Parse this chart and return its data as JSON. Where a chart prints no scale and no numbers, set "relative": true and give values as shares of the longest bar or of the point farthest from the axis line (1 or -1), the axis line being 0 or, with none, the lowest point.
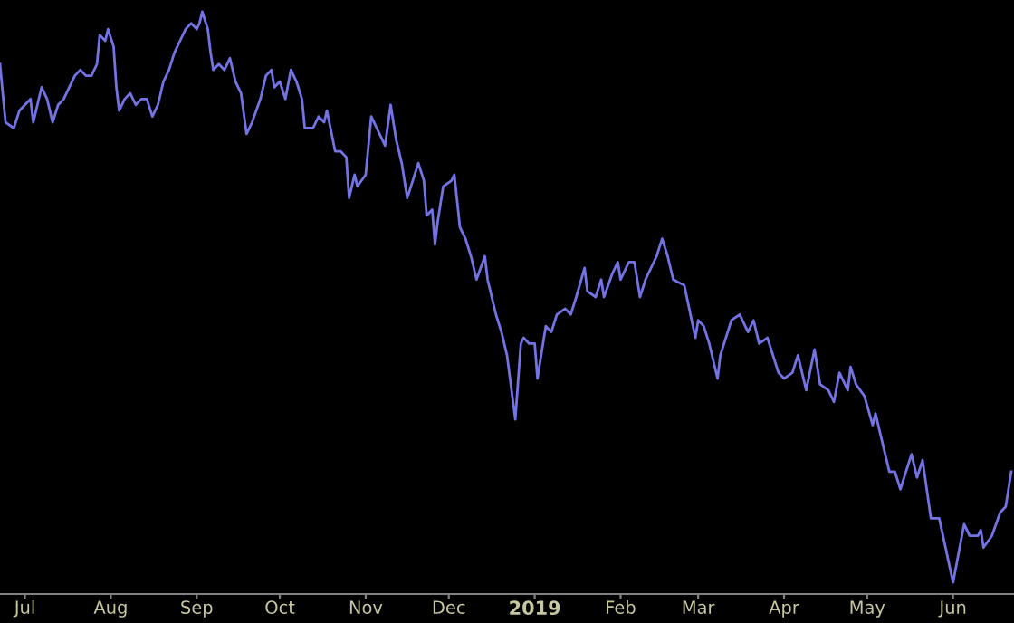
{
  "chart_data": {
    "type": "line",
    "relative": true,
    "legend": false,
    "grid": false,
    "marker": "none",
    "line_style": "solid",
    "xlim": [
      "2018-06-22",
      "2019-06-23"
    ],
    "xticks": [
      {
        "value": "2018-07-01",
        "label": "Jul"
      },
      {
        "value": "2018-08-01",
        "label": "Aug"
      },
      {
        "value": "2018-09-01",
        "label": "Sep"
      },
      {
        "value": "2018-10-01",
        "label": "Oct"
      },
      {
        "value": "2018-11-01",
        "label": "Nov"
      },
      {
        "value": "2018-12-01",
        "label": "Dec"
      },
      {
        "value": "2019-01-01",
        "label": "2019"
      },
      {
        "value": "2019-02-01",
        "label": "Feb"
      },
      {
        "value": "2019-03-01",
        "label": "Mar"
      },
      {
        "value": "2019-04-01",
        "label": "Apr"
      },
      {
        "value": "2019-05-01",
        "label": "May"
      },
      {
        "value": "2019-06-01",
        "label": "Jun"
      }
    ],
    "x": [
      "2018-06-22",
      "2018-06-24",
      "2018-06-27",
      "2018-06-29",
      "2018-07-01",
      "2018-07-03",
      "2018-07-04",
      "2018-07-07",
      "2018-07-09",
      "2018-07-11",
      "2018-07-13",
      "2018-07-15",
      "2018-07-17",
      "2018-07-19",
      "2018-07-21",
      "2018-07-23",
      "2018-07-25",
      "2018-07-27",
      "2018-07-28",
      "2018-07-30",
      "2018-07-31",
      "2018-08-02",
      "2018-08-03",
      "2018-08-04",
      "2018-08-06",
      "2018-08-08",
      "2018-08-10",
      "2018-08-12",
      "2018-08-14",
      "2018-08-16",
      "2018-08-18",
      "2018-08-20",
      "2018-08-22",
      "2018-08-24",
      "2018-08-26",
      "2018-08-28",
      "2018-08-30",
      "2018-09-01",
      "2018-09-02",
      "2018-09-03",
      "2018-09-05",
      "2018-09-06",
      "2018-09-07",
      "2018-09-09",
      "2018-09-11",
      "2018-09-13",
      "2018-09-15",
      "2018-09-17",
      "2018-09-19",
      "2018-09-21",
      "2018-09-24",
      "2018-09-26",
      "2018-09-28",
      "2018-09-29",
      "2018-10-01",
      "2018-10-03",
      "2018-10-05",
      "2018-10-07",
      "2018-10-09",
      "2018-10-10",
      "2018-10-13",
      "2018-10-15",
      "2018-10-17",
      "2018-10-18",
      "2018-10-21",
      "2018-10-23",
      "2018-10-25",
      "2018-10-26",
      "2018-10-28",
      "2018-10-29",
      "2018-11-01",
      "2018-11-03",
      "2018-11-05",
      "2018-11-08",
      "2018-11-10",
      "2018-11-12",
      "2018-11-14",
      "2018-11-16",
      "2018-11-18",
      "2018-11-20",
      "2018-11-22",
      "2018-11-23",
      "2018-11-25",
      "2018-11-26",
      "2018-11-27",
      "2018-11-29",
      "2018-12-02",
      "2018-12-03",
      "2018-12-05",
      "2018-12-07",
      "2018-12-09",
      "2018-12-11",
      "2018-12-14",
      "2018-12-15",
      "2018-12-18",
      "2018-12-20",
      "2018-12-22",
      "2018-12-25",
      "2018-12-27",
      "2018-12-28",
      "2018-12-30",
      "2019-01-01",
      "2019-01-02",
      "2019-01-05",
      "2019-01-07",
      "2019-01-09",
      "2019-01-12",
      "2019-01-14",
      "2019-01-16",
      "2019-01-19",
      "2019-01-20",
      "2019-01-23",
      "2019-01-25",
      "2019-01-26",
      "2019-01-29",
      "2019-01-31",
      "2019-02-01",
      "2019-02-04",
      "2019-02-06",
      "2019-02-08",
      "2019-02-10",
      "2019-02-14",
      "2019-02-16",
      "2019-02-18",
      "2019-02-20",
      "2019-02-24",
      "2019-02-28",
      "2019-03-01",
      "2019-03-03",
      "2019-03-05",
      "2019-03-08",
      "2019-03-09",
      "2019-03-13",
      "2019-03-16",
      "2019-03-19",
      "2019-03-21",
      "2019-03-23",
      "2019-03-26",
      "2019-03-28",
      "2019-03-30",
      "2019-04-01",
      "2019-04-04",
      "2019-04-06",
      "2019-04-09",
      "2019-04-12",
      "2019-04-14",
      "2019-04-17",
      "2019-04-19",
      "2019-04-21",
      "2019-04-24",
      "2019-04-25",
      "2019-04-27",
      "2019-04-30",
      "2019-05-03",
      "2019-05-04",
      "2019-05-06",
      "2019-05-09",
      "2019-05-11",
      "2019-05-13",
      "2019-05-17",
      "2019-05-19",
      "2019-05-21",
      "2019-05-24",
      "2019-05-27",
      "2019-06-01",
      "2019-06-05",
      "2019-06-07",
      "2019-06-10",
      "2019-06-11",
      "2019-06-12",
      "2019-06-15",
      "2019-06-18",
      "2019-06-20",
      "2019-06-22"
    ],
    "series": [
      {
        "color": "#7373e6",
        "values": [
          0.91,
          0.81,
          0.8,
          0.83,
          0.84,
          0.85,
          0.81,
          0.87,
          0.85,
          0.81,
          0.84,
          0.85,
          0.87,
          0.89,
          0.9,
          0.89,
          0.89,
          0.91,
          0.96,
          0.95,
          0.97,
          0.94,
          0.87,
          0.83,
          0.85,
          0.86,
          0.84,
          0.85,
          0.85,
          0.82,
          0.84,
          0.88,
          0.9,
          0.93,
          0.95,
          0.97,
          0.98,
          0.97,
          0.98,
          1.0,
          0.97,
          0.93,
          0.9,
          0.91,
          0.9,
          0.92,
          0.88,
          0.86,
          0.79,
          0.81,
          0.85,
          0.89,
          0.9,
          0.87,
          0.88,
          0.85,
          0.9,
          0.88,
          0.85,
          0.8,
          0.8,
          0.82,
          0.81,
          0.83,
          0.76,
          0.76,
          0.75,
          0.68,
          0.72,
          0.7,
          0.72,
          0.82,
          0.8,
          0.77,
          0.84,
          0.78,
          0.74,
          0.68,
          0.71,
          0.74,
          0.71,
          0.65,
          0.66,
          0.6,
          0.64,
          0.7,
          0.71,
          0.72,
          0.63,
          0.61,
          0.58,
          0.54,
          0.58,
          0.54,
          0.48,
          0.45,
          0.41,
          0.3,
          0.43,
          0.44,
          0.43,
          0.43,
          0.37,
          0.46,
          0.45,
          0.48,
          0.49,
          0.48,
          0.51,
          0.56,
          0.52,
          0.51,
          0.54,
          0.51,
          0.55,
          0.57,
          0.54,
          0.57,
          0.57,
          0.51,
          0.54,
          0.58,
          0.61,
          0.58,
          0.54,
          0.53,
          0.44,
          0.47,
          0.46,
          0.43,
          0.37,
          0.41,
          0.47,
          0.48,
          0.45,
          0.47,
          0.43,
          0.44,
          0.41,
          0.38,
          0.37,
          0.38,
          0.41,
          0.35,
          0.42,
          0.36,
          0.35,
          0.33,
          0.38,
          0.35,
          0.39,
          0.36,
          0.34,
          0.29,
          0.31,
          0.27,
          0.21,
          0.21,
          0.18,
          0.24,
          0.2,
          0.23,
          0.13,
          0.13,
          0.02,
          0.12,
          0.1,
          0.1,
          0.11,
          0.08,
          0.1,
          0.14,
          0.15,
          0.21
        ]
      }
    ]
  }
}
